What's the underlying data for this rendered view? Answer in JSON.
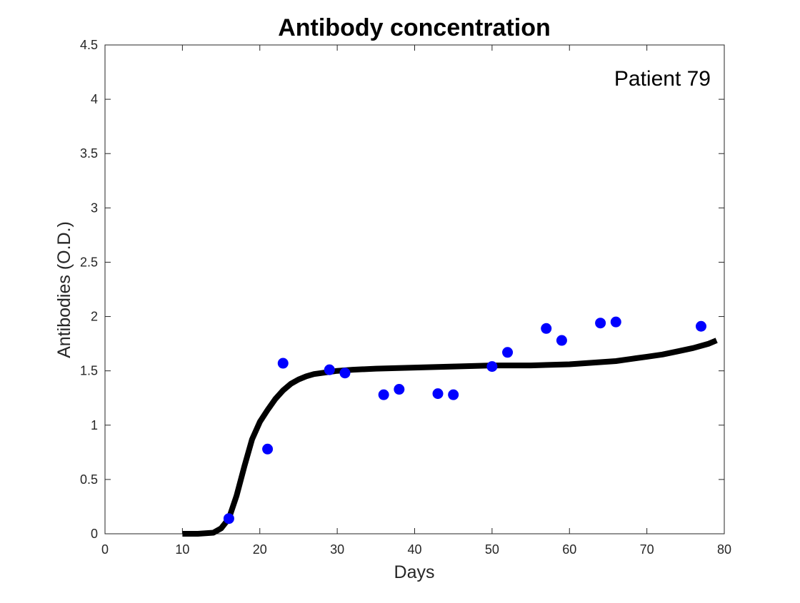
{
  "chart_data": {
    "type": "scatter",
    "title": "Antibody concentration",
    "xlabel": "Days",
    "ylabel": "Antibodies (O.D.)",
    "xlim": [
      0,
      80
    ],
    "ylim": [
      0,
      4.5
    ],
    "xticks": [
      0,
      10,
      20,
      30,
      40,
      50,
      60,
      70,
      80
    ],
    "yticks": [
      0,
      0.5,
      1,
      1.5,
      2,
      2.5,
      3,
      3.5,
      4,
      4.5
    ],
    "xtick_labels": [
      "0",
      "10",
      "20",
      "30",
      "40",
      "50",
      "60",
      "70",
      "80"
    ],
    "ytick_labels": [
      "0",
      "0.5",
      "1",
      "1.5",
      "2",
      "2.5",
      "3",
      "3.5",
      "4",
      "4.5"
    ],
    "grid": false,
    "annotation": "Patient 79",
    "series": [
      {
        "kind": "points",
        "color": "#0000ff",
        "x": [
          16,
          21,
          23,
          29,
          31,
          36,
          38,
          43,
          45,
          50,
          52,
          57,
          59,
          64,
          66,
          77
        ],
        "y": [
          0.14,
          0.78,
          1.57,
          1.51,
          1.48,
          1.28,
          1.33,
          1.29,
          1.28,
          1.54,
          1.67,
          1.89,
          1.78,
          1.94,
          1.95,
          1.91
        ]
      },
      {
        "kind": "curve",
        "color": "#000000",
        "x": [
          10,
          12,
          14,
          15,
          16,
          17,
          18,
          19,
          20,
          21,
          22,
          23,
          24,
          25,
          26,
          27,
          28,
          29,
          30,
          32,
          35,
          40,
          45,
          50,
          55,
          60,
          62,
          64,
          66,
          68,
          70,
          72,
          74,
          76,
          78,
          79
        ],
        "y": [
          0.0,
          0.0,
          0.01,
          0.05,
          0.14,
          0.35,
          0.62,
          0.87,
          1.03,
          1.14,
          1.24,
          1.32,
          1.38,
          1.42,
          1.45,
          1.47,
          1.48,
          1.49,
          1.5,
          1.51,
          1.52,
          1.53,
          1.54,
          1.55,
          1.55,
          1.56,
          1.57,
          1.58,
          1.59,
          1.61,
          1.63,
          1.65,
          1.68,
          1.71,
          1.75,
          1.78
        ]
      }
    ]
  }
}
